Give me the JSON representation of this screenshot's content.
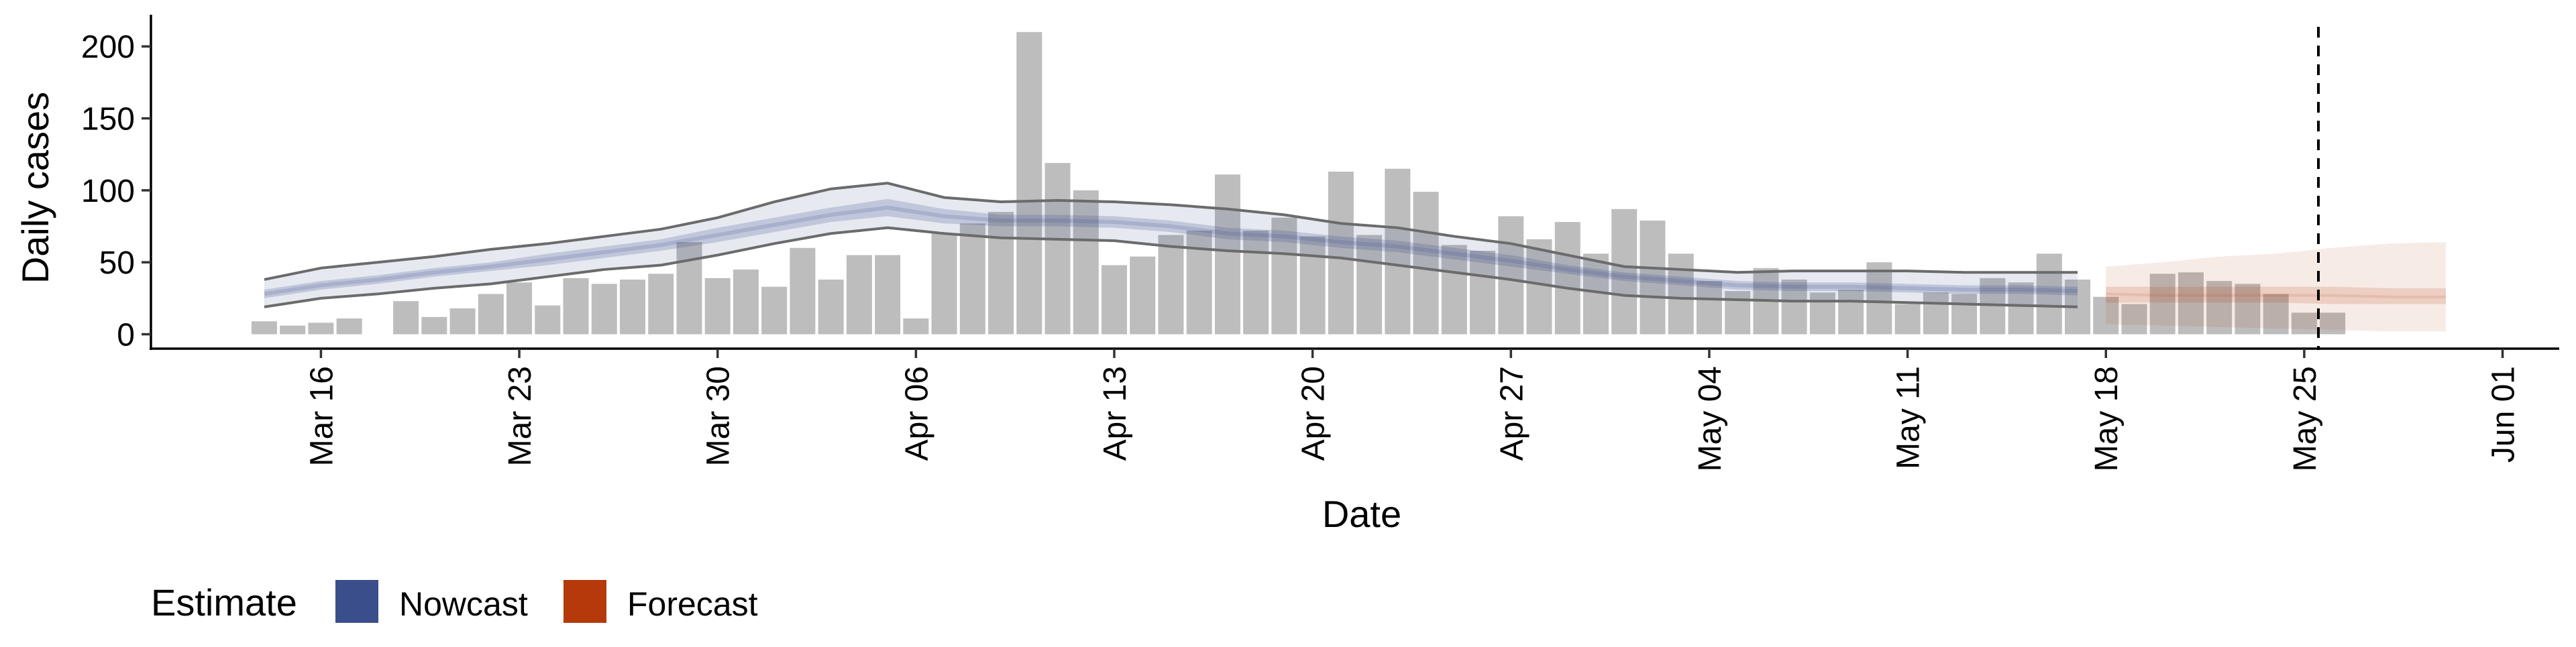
{
  "chart_data": {
    "type": "bar",
    "xlabel": "Date",
    "ylabel": "Daily cases",
    "ylim": [
      -10,
      222
    ],
    "yticks": [
      0,
      50,
      100,
      150,
      200
    ],
    "x_range": [
      "2020-03-10",
      "2020-06-03"
    ],
    "x_ticks": [
      {
        "date": "2020-03-16",
        "label": "Mar 16"
      },
      {
        "date": "2020-03-23",
        "label": "Mar 23"
      },
      {
        "date": "2020-03-30",
        "label": "Mar 30"
      },
      {
        "date": "2020-04-06",
        "label": "Apr 06"
      },
      {
        "date": "2020-04-13",
        "label": "Apr 13"
      },
      {
        "date": "2020-04-20",
        "label": "Apr 20"
      },
      {
        "date": "2020-04-27",
        "label": "Apr 27"
      },
      {
        "date": "2020-05-04",
        "label": "May 04"
      },
      {
        "date": "2020-05-11",
        "label": "May 11"
      },
      {
        "date": "2020-05-18",
        "label": "May 18"
      },
      {
        "date": "2020-05-25",
        "label": "May 25"
      },
      {
        "date": "2020-06-01",
        "label": "Jun 01"
      }
    ],
    "vline_date": "2020-05-25",
    "colors": {
      "bars": "#bdbdbd",
      "nowcast": "#3a4e8c",
      "forecast": "#b5390b",
      "outer_line": "#6b6b6b"
    },
    "bars": {
      "dates": [
        "2020-03-14",
        "2020-03-15",
        "2020-03-16",
        "2020-03-17",
        "2020-03-18",
        "2020-03-19",
        "2020-03-20",
        "2020-03-21",
        "2020-03-22",
        "2020-03-23",
        "2020-03-24",
        "2020-03-25",
        "2020-03-26",
        "2020-03-27",
        "2020-03-28",
        "2020-03-29",
        "2020-03-30",
        "2020-03-31",
        "2020-04-01",
        "2020-04-02",
        "2020-04-03",
        "2020-04-04",
        "2020-04-05",
        "2020-04-06",
        "2020-04-07",
        "2020-04-08",
        "2020-04-09",
        "2020-04-10",
        "2020-04-11",
        "2020-04-12",
        "2020-04-13",
        "2020-04-14",
        "2020-04-15",
        "2020-04-16",
        "2020-04-17",
        "2020-04-18",
        "2020-04-19",
        "2020-04-20",
        "2020-04-21",
        "2020-04-22",
        "2020-04-23",
        "2020-04-24",
        "2020-04-25",
        "2020-04-26",
        "2020-04-27",
        "2020-04-28",
        "2020-04-29",
        "2020-04-30",
        "2020-05-01",
        "2020-05-02",
        "2020-05-03",
        "2020-05-04",
        "2020-05-05",
        "2020-05-06",
        "2020-05-07",
        "2020-05-08",
        "2020-05-09",
        "2020-05-10",
        "2020-05-11",
        "2020-05-12",
        "2020-05-13",
        "2020-05-14",
        "2020-05-15",
        "2020-05-16",
        "2020-05-17",
        "2020-05-18",
        "2020-05-19",
        "2020-05-20",
        "2020-05-21",
        "2020-05-22",
        "2020-05-23",
        "2020-05-24",
        "2020-05-25",
        "2020-05-26"
      ],
      "values": [
        9,
        6,
        8,
        11,
        0,
        23,
        12,
        18,
        28,
        36,
        20,
        39,
        35,
        38,
        42,
        64,
        39,
        45,
        33,
        60,
        38,
        55,
        55,
        11,
        70,
        77,
        85,
        210,
        119,
        100,
        48,
        54,
        69,
        72,
        111,
        72,
        81,
        68,
        113,
        69,
        115,
        99,
        62,
        58,
        82,
        66,
        78,
        56,
        87,
        79,
        56,
        37,
        30,
        46,
        38,
        29,
        31,
        50,
        21,
        29,
        28,
        39,
        36,
        56,
        38,
        26,
        21,
        42,
        43,
        37,
        35,
        28,
        15,
        15
      ]
    },
    "nowcast": {
      "dates": [
        "2020-03-14",
        "2020-03-16",
        "2020-03-18",
        "2020-03-20",
        "2020-03-22",
        "2020-03-24",
        "2020-03-26",
        "2020-03-28",
        "2020-03-30",
        "2020-04-01",
        "2020-04-03",
        "2020-04-05",
        "2020-04-07",
        "2020-04-09",
        "2020-04-11",
        "2020-04-13",
        "2020-04-15",
        "2020-04-17",
        "2020-04-19",
        "2020-04-21",
        "2020-04-23",
        "2020-04-25",
        "2020-04-27",
        "2020-04-29",
        "2020-05-01",
        "2020-05-03",
        "2020-05-05",
        "2020-05-07",
        "2020-05-09",
        "2020-05-11",
        "2020-05-13",
        "2020-05-15",
        "2020-05-17"
      ],
      "median": [
        28,
        34,
        38,
        43,
        47,
        52,
        57,
        62,
        69,
        76,
        83,
        88,
        82,
        79,
        79,
        78,
        75,
        70,
        68,
        64,
        61,
        56,
        51,
        45,
        40,
        37,
        34,
        33,
        33,
        32,
        31,
        31,
        30
      ],
      "q25": [
        25,
        31,
        35,
        40,
        44,
        48,
        53,
        58,
        64,
        71,
        78,
        82,
        77,
        75,
        75,
        74,
        71,
        66,
        64,
        60,
        57,
        52,
        47,
        42,
        37,
        34,
        31,
        30,
        30,
        29,
        28,
        28,
        27
      ],
      "q75": [
        31,
        37,
        41,
        46,
        50,
        56,
        61,
        66,
        74,
        81,
        88,
        94,
        87,
        83,
        83,
        82,
        79,
        74,
        72,
        68,
        65,
        60,
        55,
        48,
        43,
        40,
        37,
        36,
        36,
        35,
        34,
        34,
        33
      ],
      "lower": [
        19,
        25,
        28,
        32,
        35,
        40,
        45,
        48,
        55,
        63,
        70,
        74,
        70,
        67,
        66,
        65,
        61,
        58,
        56,
        53,
        48,
        43,
        38,
        32,
        27,
        25,
        24,
        23,
        23,
        22,
        21,
        20,
        19
      ],
      "upper": [
        38,
        46,
        50,
        54,
        59,
        63,
        68,
        73,
        81,
        92,
        101,
        105,
        95,
        92,
        93,
        92,
        90,
        87,
        83,
        77,
        74,
        68,
        63,
        55,
        47,
        45,
        43,
        44,
        44,
        44,
        43,
        43,
        43
      ]
    },
    "forecast": {
      "dates": [
        "2020-05-18",
        "2020-05-20",
        "2020-05-22",
        "2020-05-24",
        "2020-05-26",
        "2020-05-28",
        "2020-05-30"
      ],
      "median": [
        28,
        27,
        27,
        27,
        27,
        26,
        26
      ],
      "q25": [
        22,
        22,
        22,
        22,
        21,
        21,
        21
      ],
      "q75": [
        33,
        33,
        33,
        33,
        33,
        32,
        32
      ],
      "lower": [
        7,
        6,
        5,
        4,
        3,
        2,
        2
      ],
      "upper": [
        47,
        50,
        54,
        56,
        60,
        63,
        64
      ]
    },
    "legend": {
      "title": "Estimate",
      "items": [
        {
          "label": "Nowcast",
          "color": "#3a4e8c"
        },
        {
          "label": "Forecast",
          "color": "#b5390b"
        }
      ]
    }
  }
}
